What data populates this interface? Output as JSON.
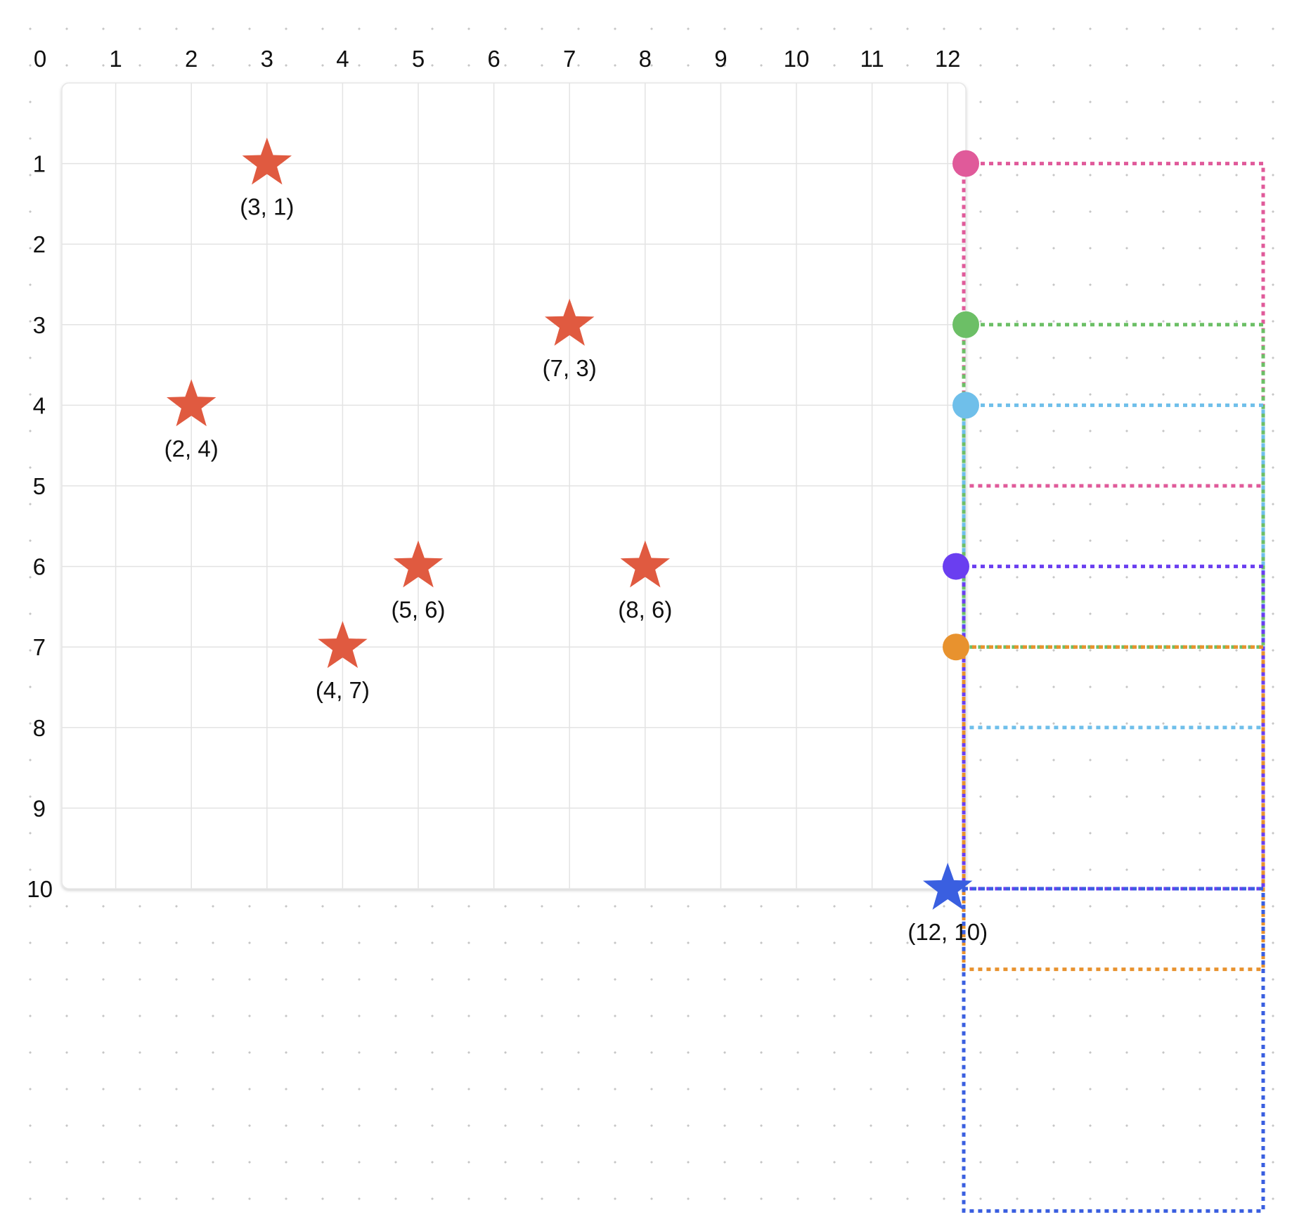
{
  "board": {
    "x_axis": {
      "ticks": [
        "0",
        "1",
        "2",
        "3",
        "4",
        "5",
        "6",
        "7",
        "8",
        "9",
        "10",
        "11",
        "12"
      ]
    },
    "y_axis": {
      "ticks": [
        "1",
        "2",
        "3",
        "4",
        "5",
        "6",
        "7",
        "8",
        "9",
        "10"
      ]
    },
    "points": [
      {
        "x": 3,
        "y": 1,
        "label": "(3, 1)",
        "color": "#e05a40"
      },
      {
        "x": 7,
        "y": 3,
        "label": "(7, 3)",
        "color": "#e05a40"
      },
      {
        "x": 2,
        "y": 4,
        "label": "(2, 4)",
        "color": "#e05a40"
      },
      {
        "x": 5,
        "y": 6,
        "label": "(5, 6)",
        "color": "#e05a40"
      },
      {
        "x": 8,
        "y": 6,
        "label": "(8, 6)",
        "color": "#e05a40"
      },
      {
        "x": 4,
        "y": 7,
        "label": "(4, 7)",
        "color": "#e05a40"
      },
      {
        "x": 12,
        "y": 10,
        "label": "(12, 10)",
        "color": "#3a5fe0"
      }
    ],
    "range_boxes": [
      {
        "name": "pink",
        "color": "#e05a9a",
        "y_start": 1,
        "y_end": 5
      },
      {
        "name": "green",
        "color": "#6cbf66",
        "y_start": 3,
        "y_end": 7
      },
      {
        "name": "light-blue",
        "color": "#6fbfea",
        "y_start": 4,
        "y_end": 8
      },
      {
        "name": "purple",
        "color": "#6a3ef0",
        "y_start": 6,
        "y_end": 10
      },
      {
        "name": "orange",
        "color": "#e8922e",
        "y_start": 7,
        "y_end": 11
      },
      {
        "name": "blue",
        "color": "#3a5fe0",
        "y_start": 10,
        "y_end": 14
      }
    ]
  }
}
